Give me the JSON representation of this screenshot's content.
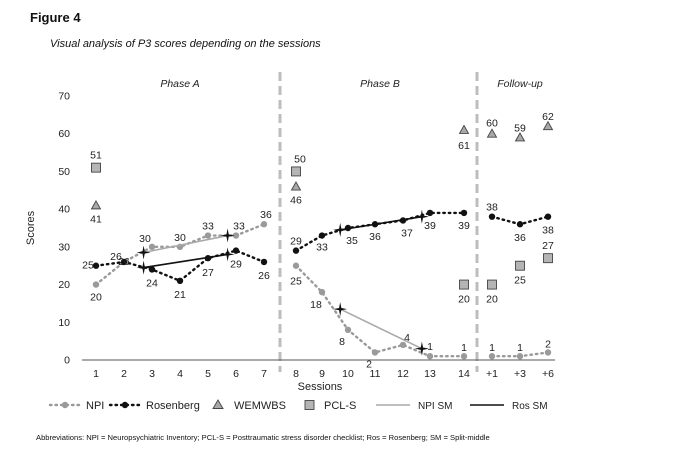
{
  "figure_label": "Figure 4",
  "figure_title": "Visual analysis of P3 scores depending on the sessions",
  "footnote": "Abbreviations: NPI = Neuropsychiatric Inventory; PCL-S = Posttraumatic stress disorder checklist; Ros = Rosenberg; SM = Split-middle",
  "colors": {
    "npi": "#9a9a9a",
    "rosenberg": "#111111",
    "wemwbs_fill": "#a8a8a8",
    "pcls_fill": "#b5b5b5",
    "phase_divider": "#bdbdbd",
    "axis": "#555555"
  },
  "chart_data": {
    "type": "line",
    "xlabel": "Sessions",
    "ylabel": "Scores",
    "ylim": [
      0,
      70
    ],
    "yticks": [
      0,
      10,
      20,
      30,
      40,
      50,
      60,
      70
    ],
    "sessions": [
      "1",
      "2",
      "3",
      "4",
      "5",
      "6",
      "7",
      "8",
      "9",
      "10",
      "11",
      "12",
      "13",
      "14",
      "+1",
      "+3",
      "+6"
    ],
    "phases": [
      {
        "name": "Phase A",
        "from": 0,
        "to": 6
      },
      {
        "name": "Phase B",
        "from": 7,
        "to": 13
      },
      {
        "name": "Follow-up",
        "from": 14,
        "to": 16
      }
    ],
    "series": [
      {
        "name": "NPI",
        "key": "npi",
        "values": [
          20,
          26,
          30,
          30,
          33,
          33,
          36,
          25,
          18,
          8,
          2,
          4,
          1,
          1,
          1,
          1,
          2
        ]
      },
      {
        "name": "Rosenberg",
        "key": "ros",
        "values": [
          25,
          26,
          24,
          21,
          27,
          29,
          26,
          29,
          33,
          35,
          36,
          37,
          39,
          39,
          38,
          36,
          38
        ]
      },
      {
        "name": "WEMWBS",
        "key": "wem",
        "points": [
          {
            "i": 0,
            "v": 41
          },
          {
            "i": 7,
            "v": 46
          },
          {
            "i": 13,
            "v": 61
          },
          {
            "i": 14,
            "v": 60
          },
          {
            "i": 15,
            "v": 59
          },
          {
            "i": 16,
            "v": 62
          }
        ]
      },
      {
        "name": "PCL-S",
        "key": "pcl",
        "points": [
          {
            "i": 0,
            "v": 51
          },
          {
            "i": 7,
            "v": 50
          },
          {
            "i": 13,
            "v": 20
          },
          {
            "i": 14,
            "v": 20
          },
          {
            "i": 15,
            "v": 25
          },
          {
            "i": 16,
            "v": 27
          }
        ]
      }
    ],
    "split_middle": [
      {
        "name": "NPI SM",
        "key": "npi_sm",
        "segments": [
          {
            "from": {
              "i": 1.7,
              "v": 28.5
            },
            "to": {
              "i": 4.7,
              "v": 33
            }
          },
          {
            "from": {
              "i": 8.7,
              "v": 13.5
            },
            "to": {
              "i": 11.7,
              "v": 3
            }
          }
        ]
      },
      {
        "name": "Ros SM",
        "key": "ros_sm",
        "segments": [
          {
            "from": {
              "i": 1.7,
              "v": 24.5
            },
            "to": {
              "i": 4.7,
              "v": 28
            }
          },
          {
            "from": {
              "i": 8.7,
              "v": 34.5
            },
            "to": {
              "i": 11.7,
              "v": 38
            }
          }
        ]
      }
    ],
    "legend": [
      "NPI",
      "Rosenberg",
      "WEMWBS",
      "PCL-S",
      "NPI SM",
      "Ros SM"
    ]
  }
}
